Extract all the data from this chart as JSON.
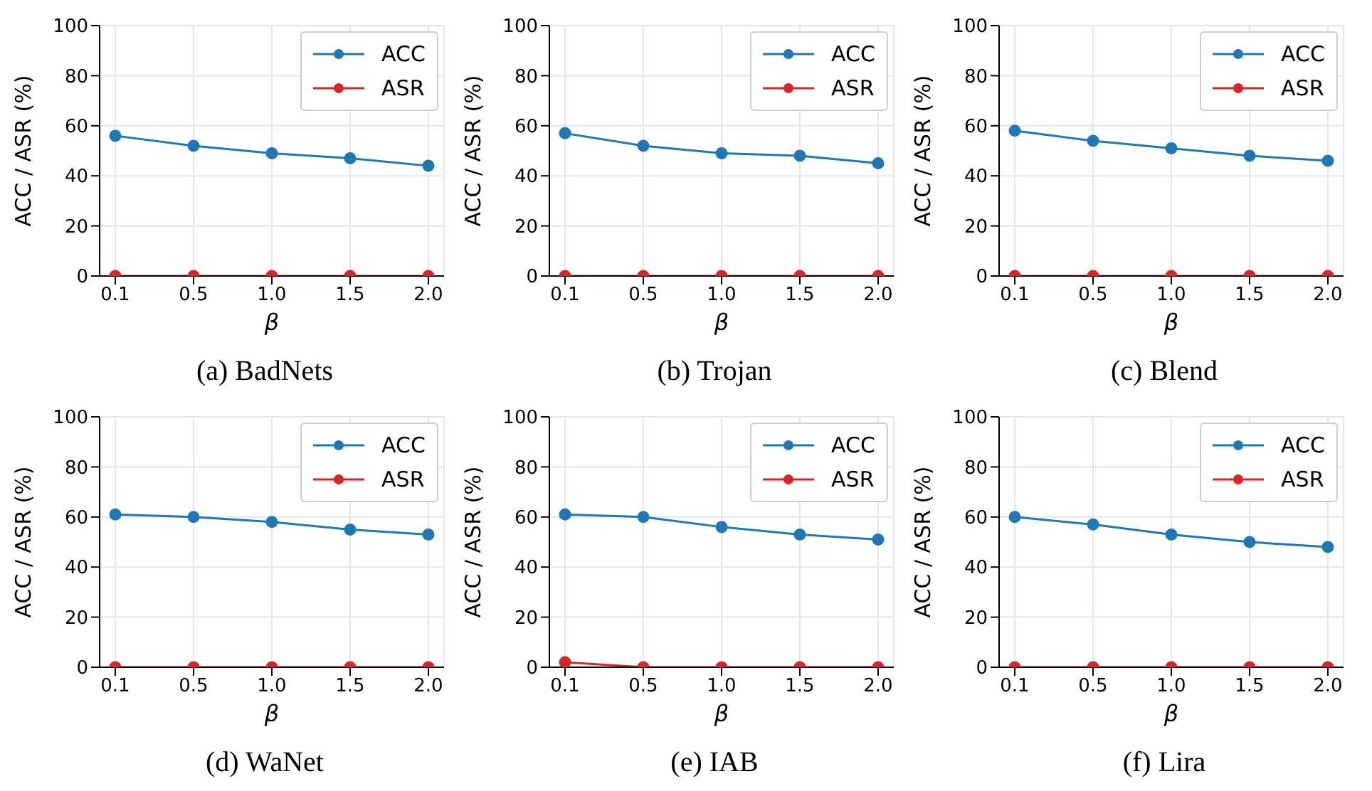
{
  "chart_data": [
    {
      "type": "line",
      "title": "(a) BadNets",
      "xlabel": "β",
      "ylabel": "ACC / ASR (%)",
      "categories": [
        "0.1",
        "0.5",
        "1.0",
        "1.5",
        "2.0"
      ],
      "ylim": [
        0,
        100
      ],
      "yticks": [
        0,
        20,
        40,
        60,
        80,
        100
      ],
      "grid": true,
      "legend": "top right",
      "marker": "circle",
      "line_style": "solid",
      "series": [
        {
          "name": "ACC",
          "color": "#1f77b4",
          "values": [
            56,
            52,
            49,
            47,
            44
          ]
        },
        {
          "name": "ASR",
          "color": "#d62728",
          "values": [
            0,
            0,
            0,
            0,
            0
          ]
        }
      ]
    },
    {
      "type": "line",
      "title": "(b) Trojan",
      "xlabel": "β",
      "ylabel": "ACC / ASR (%)",
      "categories": [
        "0.1",
        "0.5",
        "1.0",
        "1.5",
        "2.0"
      ],
      "ylim": [
        0,
        100
      ],
      "yticks": [
        0,
        20,
        40,
        60,
        80,
        100
      ],
      "grid": true,
      "legend": "top right",
      "marker": "circle",
      "line_style": "solid",
      "series": [
        {
          "name": "ACC",
          "color": "#1f77b4",
          "values": [
            57,
            52,
            49,
            48,
            45
          ]
        },
        {
          "name": "ASR",
          "color": "#d62728",
          "values": [
            0,
            0,
            0,
            0,
            0
          ]
        }
      ]
    },
    {
      "type": "line",
      "title": "(c) Blend",
      "xlabel": "β",
      "ylabel": "ACC / ASR (%)",
      "categories": [
        "0.1",
        "0.5",
        "1.0",
        "1.5",
        "2.0"
      ],
      "ylim": [
        0,
        100
      ],
      "yticks": [
        0,
        20,
        40,
        60,
        80,
        100
      ],
      "grid": true,
      "legend": "top right",
      "marker": "circle",
      "line_style": "solid",
      "series": [
        {
          "name": "ACC",
          "color": "#1f77b4",
          "values": [
            58,
            54,
            51,
            48,
            46
          ]
        },
        {
          "name": "ASR",
          "color": "#d62728",
          "values": [
            0,
            0,
            0,
            0,
            0
          ]
        }
      ]
    },
    {
      "type": "line",
      "title": "(d) WaNet",
      "xlabel": "β",
      "ylabel": "ACC / ASR (%)",
      "categories": [
        "0.1",
        "0.5",
        "1.0",
        "1.5",
        "2.0"
      ],
      "ylim": [
        0,
        100
      ],
      "yticks": [
        0,
        20,
        40,
        60,
        80,
        100
      ],
      "grid": true,
      "legend": "top right",
      "marker": "circle",
      "line_style": "solid",
      "series": [
        {
          "name": "ACC",
          "color": "#1f77b4",
          "values": [
            61,
            60,
            58,
            55,
            53
          ]
        },
        {
          "name": "ASR",
          "color": "#d62728",
          "values": [
            0,
            0,
            0,
            0,
            0
          ]
        }
      ]
    },
    {
      "type": "line",
      "title": "(e) IAB",
      "xlabel": "β",
      "ylabel": "ACC / ASR (%)",
      "categories": [
        "0.1",
        "0.5",
        "1.0",
        "1.5",
        "2.0"
      ],
      "ylim": [
        0,
        100
      ],
      "yticks": [
        0,
        20,
        40,
        60,
        80,
        100
      ],
      "grid": true,
      "legend": "top right",
      "marker": "circle",
      "line_style": "solid",
      "series": [
        {
          "name": "ACC",
          "color": "#1f77b4",
          "values": [
            61,
            60,
            56,
            53,
            51
          ]
        },
        {
          "name": "ASR",
          "color": "#d62728",
          "values": [
            2,
            0,
            0,
            0,
            0
          ]
        }
      ]
    },
    {
      "type": "line",
      "title": "(f) Lira",
      "xlabel": "β",
      "ylabel": "ACC / ASR (%)",
      "categories": [
        "0.1",
        "0.5",
        "1.0",
        "1.5",
        "2.0"
      ],
      "ylim": [
        0,
        100
      ],
      "yticks": [
        0,
        20,
        40,
        60,
        80,
        100
      ],
      "grid": true,
      "legend": "top right",
      "marker": "circle",
      "line_style": "solid",
      "series": [
        {
          "name": "ACC",
          "color": "#1f77b4",
          "values": [
            60,
            57,
            53,
            50,
            48
          ]
        },
        {
          "name": "ASR",
          "color": "#d62728",
          "values": [
            0,
            0,
            0,
            0,
            0
          ]
        }
      ]
    }
  ]
}
